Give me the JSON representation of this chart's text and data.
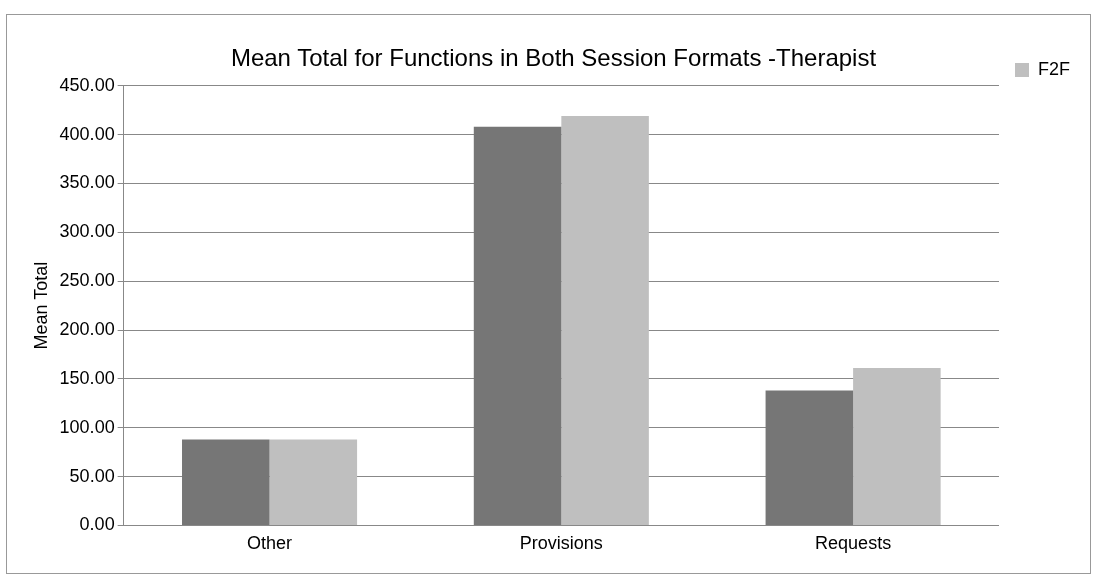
{
  "chart_data": {
    "type": "bar",
    "title": "Mean Total for Functions in Both Session Formats -Therapist",
    "ylabel": "Mean Total",
    "categories": [
      "Other",
      "Provisions",
      "Requests"
    ],
    "series": [
      {
        "color": "#767676",
        "values": [
          88,
          408,
          138
        ]
      },
      {
        "name": "F2F",
        "color": "#bfbfbf",
        "values": [
          88,
          419,
          161
        ]
      }
    ],
    "ylim": [
      0,
      450
    ],
    "yticks": [
      {
        "value": 0,
        "label": "0.00"
      },
      {
        "value": 50,
        "label": "50.00"
      },
      {
        "value": 100,
        "label": "100.00"
      },
      {
        "value": 150,
        "label": "150.00"
      },
      {
        "value": 200,
        "label": "200.00"
      },
      {
        "value": 250,
        "label": "250.00"
      },
      {
        "value": 300,
        "label": "300.00"
      },
      {
        "value": 350,
        "label": "350.00"
      },
      {
        "value": 400,
        "label": "400.00"
      },
      {
        "value": 450,
        "label": "450.00"
      }
    ],
    "grid": "y",
    "legend": "right"
  }
}
